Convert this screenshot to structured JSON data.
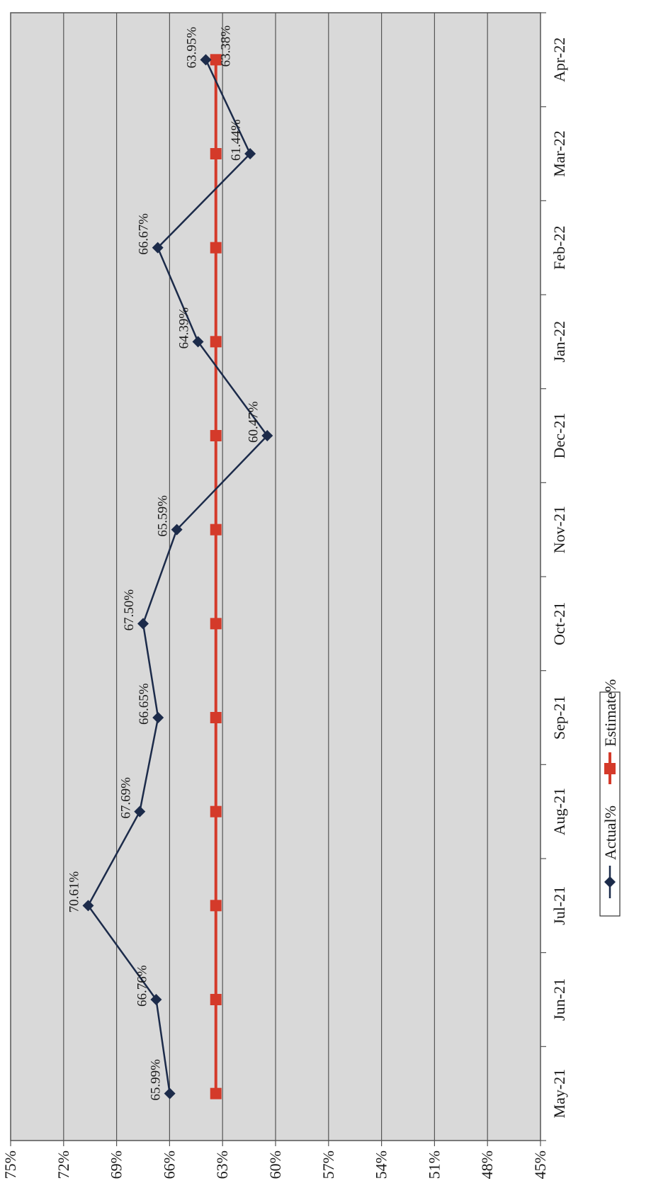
{
  "chart_data": {
    "type": "line",
    "categories": [
      "May-21",
      "Jun-21",
      "Jul-21",
      "Aug-21",
      "Sep-21",
      "Oct-21",
      "Nov-21",
      "Dec-21",
      "Jan-22",
      "Feb-22",
      "Mar-22",
      "Apr-22"
    ],
    "series": [
      {
        "name": "Actual%",
        "values": [
          65.99,
          66.76,
          70.61,
          67.69,
          66.65,
          67.5,
          65.59,
          60.47,
          64.39,
          66.67,
          61.44,
          63.95
        ],
        "labels": [
          "65.99%",
          "66.76%",
          "70.61%",
          "67.69%",
          "66.65%",
          "67.50%",
          "65.59%",
          "60.47%",
          "64.39%",
          "66.67%",
          "61.44%",
          "63.95%"
        ],
        "color": "#1c2b4a",
        "marker": "diamond"
      },
      {
        "name": "Estimate%",
        "values": [
          63.38,
          63.38,
          63.38,
          63.38,
          63.38,
          63.38,
          63.38,
          63.38,
          63.38,
          63.38,
          63.38,
          63.38
        ],
        "labels": [
          "",
          "",
          "",
          "",
          "",
          "",
          "",
          "",
          "",
          "",
          "",
          "63.38%"
        ],
        "color": "#d43a2a",
        "marker": "square"
      }
    ],
    "y_ticks": [
      "45%",
      "48%",
      "51%",
      "54%",
      "57%",
      "60%",
      "63%",
      "66%",
      "69%",
      "72%",
      "75%"
    ],
    "ylim": [
      45,
      75
    ],
    "grid": true,
    "orientation": "rotated-90-clockwise",
    "legend": "bottom",
    "plot_background": "#d9d9d9"
  }
}
